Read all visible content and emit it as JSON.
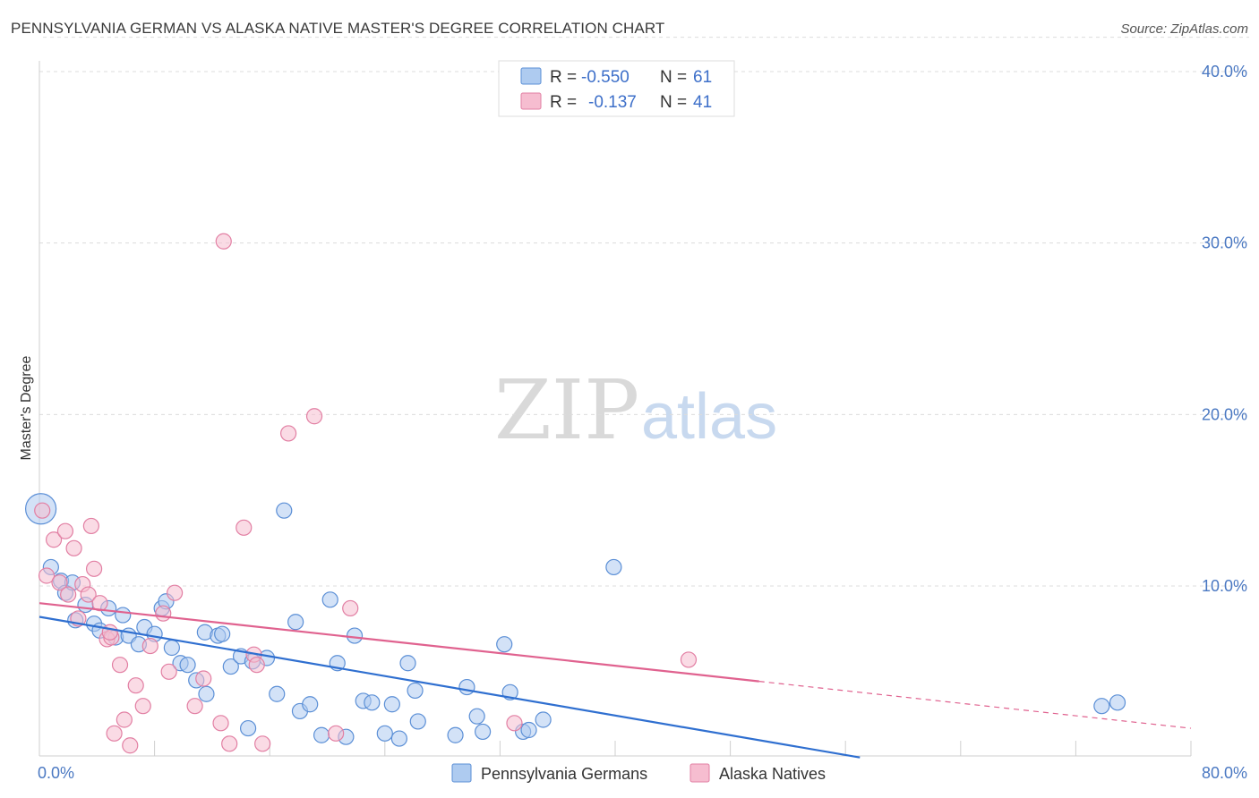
{
  "title": "PENNSYLVANIA GERMAN VS ALASKA NATIVE MASTER'S DEGREE CORRELATION CHART",
  "source": "Source: ZipAtlas.com",
  "watermark": {
    "part1": "ZIP",
    "part2": "atlas"
  },
  "colors": {
    "blue_fill": "#aecbf0",
    "blue_stroke": "#5b8fd6",
    "blue_line": "#2f6fd0",
    "pink_fill": "#f6bdd0",
    "pink_stroke": "#e27fa3",
    "pink_line": "#e0628f",
    "grid": "#dcdcdc",
    "tick_text": "#4a78c2"
  },
  "legend": {
    "rows": [
      {
        "r_label": "R =",
        "r_value": "-0.550",
        "n_label": "N =",
        "n_value": "61"
      },
      {
        "r_label": "R =",
        "r_value": "-0.137",
        "n_label": "N =",
        "n_value": "41"
      }
    ]
  },
  "chart_data": {
    "type": "scatter",
    "title": "PENNSYLVANIA GERMAN VS ALASKA NATIVE MASTER'S DEGREE CORRELATION CHART",
    "xlabel": "",
    "ylabel": "Master's Degree",
    "xlim": [
      0,
      80
    ],
    "ylim": [
      0,
      42
    ],
    "x_tick_labels": [
      "0.0%",
      "80.0%"
    ],
    "y_ticks": [
      10,
      20,
      30,
      40
    ],
    "y_tick_labels": [
      "10.0%",
      "20.0%",
      "30.0%",
      "40.0%"
    ],
    "x_minor_ticks": [
      8,
      16,
      24,
      32,
      40,
      48,
      56,
      64,
      72,
      80
    ],
    "grid": true,
    "legend_position": "bottom",
    "series": [
      {
        "name": "Pennsylvania Germans",
        "R": -0.55,
        "N": 61,
        "trend": {
          "x0": 0,
          "y0": 8.2,
          "x1": 57,
          "y1": 0,
          "x_end_solid": 57
        },
        "points": [
          [
            0.1,
            14.5,
            "big"
          ],
          [
            0.8,
            11.1
          ],
          [
            1.5,
            10.3
          ],
          [
            1.8,
            9.6
          ],
          [
            2.3,
            10.2
          ],
          [
            2.5,
            8.0
          ],
          [
            3.2,
            8.9
          ],
          [
            3.8,
            7.8
          ],
          [
            4.2,
            7.4
          ],
          [
            4.8,
            8.7
          ],
          [
            5.3,
            7.0
          ],
          [
            5.8,
            8.3
          ],
          [
            6.2,
            7.1
          ],
          [
            6.9,
            6.6
          ],
          [
            7.3,
            7.6
          ],
          [
            8.0,
            7.2
          ],
          [
            8.5,
            8.7
          ],
          [
            8.8,
            9.1
          ],
          [
            9.2,
            6.4
          ],
          [
            9.8,
            5.5
          ],
          [
            10.3,
            5.4
          ],
          [
            10.9,
            4.5
          ],
          [
            11.6,
            3.7
          ],
          [
            11.5,
            7.3
          ],
          [
            12.4,
            7.1
          ],
          [
            12.7,
            7.2
          ],
          [
            13.3,
            5.3
          ],
          [
            14.0,
            5.9
          ],
          [
            14.5,
            1.7
          ],
          [
            14.8,
            5.6
          ],
          [
            15.8,
            5.8
          ],
          [
            16.5,
            3.7
          ],
          [
            17.0,
            14.4
          ],
          [
            17.8,
            7.9
          ],
          [
            18.1,
            2.7
          ],
          [
            18.8,
            3.1
          ],
          [
            19.6,
            1.3
          ],
          [
            20.2,
            9.2
          ],
          [
            20.7,
            5.5
          ],
          [
            21.3,
            1.2
          ],
          [
            21.9,
            7.1
          ],
          [
            22.5,
            3.3
          ],
          [
            23.1,
            3.2
          ],
          [
            24.0,
            1.4
          ],
          [
            24.5,
            3.1
          ],
          [
            25.0,
            1.1
          ],
          [
            25.6,
            5.5
          ],
          [
            26.1,
            3.9
          ],
          [
            26.3,
            2.1
          ],
          [
            28.9,
            1.3
          ],
          [
            29.7,
            4.1
          ],
          [
            30.4,
            2.4
          ],
          [
            30.8,
            1.5
          ],
          [
            32.3,
            6.6
          ],
          [
            32.7,
            3.8
          ],
          [
            33.6,
            1.5
          ],
          [
            34.0,
            1.6
          ],
          [
            35.0,
            2.2
          ],
          [
            39.9,
            11.1
          ],
          [
            74.9,
            3.2
          ],
          [
            73.8,
            3.0
          ]
        ]
      },
      {
        "name": "Alaska Natives",
        "R": -0.137,
        "N": 41,
        "trend": {
          "x0": 0,
          "y0": 9.0,
          "x1": 80,
          "y1": 1.7,
          "x_end_solid": 50
        },
        "points": [
          [
            0.2,
            14.4
          ],
          [
            0.5,
            10.6
          ],
          [
            1.0,
            12.7
          ],
          [
            1.4,
            10.2
          ],
          [
            1.8,
            13.2
          ],
          [
            2.0,
            9.5
          ],
          [
            2.4,
            12.2
          ],
          [
            2.7,
            8.1
          ],
          [
            3.0,
            10.1
          ],
          [
            3.4,
            9.5
          ],
          [
            3.6,
            13.5
          ],
          [
            3.8,
            11.0
          ],
          [
            4.2,
            9.0
          ],
          [
            4.7,
            6.9
          ],
          [
            5.0,
            7.0
          ],
          [
            5.2,
            1.4
          ],
          [
            5.6,
            5.4
          ],
          [
            5.9,
            2.2
          ],
          [
            6.3,
            0.7
          ],
          [
            6.7,
            4.2
          ],
          [
            7.2,
            3.0
          ],
          [
            7.7,
            6.5
          ],
          [
            8.6,
            8.4
          ],
          [
            9.0,
            5.0
          ],
          [
            9.4,
            9.6
          ],
          [
            10.8,
            3.0
          ],
          [
            11.4,
            4.6
          ],
          [
            12.6,
            2.0
          ],
          [
            12.8,
            30.1
          ],
          [
            13.2,
            0.8
          ],
          [
            14.2,
            13.4
          ],
          [
            14.9,
            6.0
          ],
          [
            15.1,
            5.4
          ],
          [
            15.5,
            0.8
          ],
          [
            17.3,
            18.9
          ],
          [
            19.1,
            19.9
          ],
          [
            20.6,
            1.4
          ],
          [
            21.6,
            8.7
          ],
          [
            33.0,
            2.0
          ],
          [
            45.1,
            5.7
          ],
          [
            4.9,
            7.3
          ]
        ]
      }
    ]
  }
}
